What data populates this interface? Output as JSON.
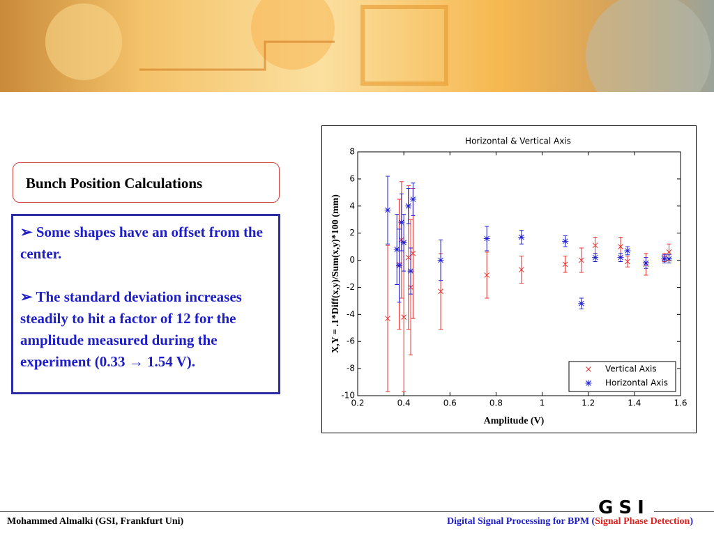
{
  "slide": {
    "box_title": "Bunch Position Calculations",
    "bullets": [
      "➢ Some shapes have an offset from the center.",
      "➢ The standard deviation increases steadily to hit a factor of 12 for the amplitude measured during the experiment (0.33 → 1.54 V)."
    ],
    "logo": "GSI",
    "footer_left": "Mohammed Almalki  (GSI, Frankfurt Uni)",
    "footer_right": [
      "Digital Signal Processing for BPM (",
      "Signal Phase Detection",
      ")"
    ]
  },
  "chart_data": {
    "type": "errorbar",
    "title": "Horizontal & Vertical Axis",
    "xlabel": "Amplitude (V)",
    "ylabel": "X,Y = .1*Diff(x,y)/Sum(x,y)*100 (mm)",
    "xlim": [
      0.2,
      1.6
    ],
    "xticks": [
      0.2,
      0.4,
      0.6,
      0.8,
      1,
      1.2,
      1.4,
      1.6
    ],
    "ylim": [
      -10,
      8
    ],
    "yticks": [
      -10,
      -8,
      -6,
      -4,
      -2,
      0,
      2,
      4,
      6,
      8
    ],
    "legend": "lower right",
    "series": [
      {
        "name": "Vertical Axis",
        "color": "#e8322e",
        "marker": "x",
        "x": [
          0.33,
          0.38,
          0.39,
          0.4,
          0.42,
          0.43,
          0.44,
          0.56,
          0.76,
          0.91,
          1.1,
          1.17,
          1.23,
          1.34,
          1.37,
          1.45,
          1.53,
          1.55
        ],
        "values": [
          -4.3,
          -0.3,
          1.5,
          -4.2,
          0.2,
          -2.0,
          0.5,
          -2.3,
          -1.1,
          -0.7,
          -0.3,
          0.0,
          1.1,
          1.0,
          -0.1,
          -0.3,
          0.2,
          0.6
        ],
        "errors": [
          5.4,
          4.8,
          4.3,
          5.5,
          5.3,
          5.0,
          4.8,
          2.8,
          1.7,
          1.0,
          0.6,
          0.9,
          0.6,
          0.7,
          0.4,
          0.8,
          0.3,
          0.6
        ]
      },
      {
        "name": "Horizontal Axis",
        "color": "#1f1fd6",
        "marker": "star",
        "x": [
          0.33,
          0.37,
          0.38,
          0.39,
          0.4,
          0.42,
          0.43,
          0.44,
          0.56,
          0.76,
          0.91,
          1.1,
          1.17,
          1.23,
          1.34,
          1.37,
          1.45,
          1.53,
          1.55
        ],
        "values": [
          3.7,
          0.8,
          -0.4,
          2.8,
          1.3,
          4.0,
          -0.8,
          4.5,
          0.0,
          1.6,
          1.7,
          1.4,
          -3.2,
          0.2,
          0.2,
          0.7,
          -0.2,
          0.1,
          0.1
        ],
        "errors": [
          2.5,
          2.6,
          2.7,
          2.1,
          2.1,
          1.3,
          1.7,
          1.2,
          1.5,
          0.9,
          0.5,
          0.4,
          0.4,
          0.3,
          0.3,
          0.3,
          0.4,
          0.3,
          0.3
        ]
      }
    ]
  }
}
